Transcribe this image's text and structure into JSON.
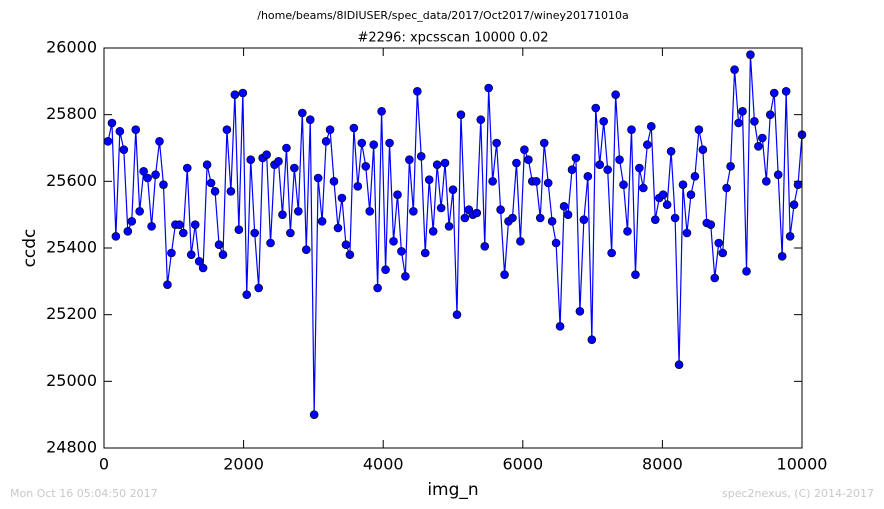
{
  "chart_data": {
    "type": "line",
    "title": "/home/beams/8IDIUSER/spec_data/2017/Oct2017/winey20171010a",
    "subtitle": "#2296: xpcsscan 10000 0.02",
    "xlabel": "img_n",
    "ylabel": "ccdc",
    "footer_left": "Mon Oct 16 05:04:50 2017",
    "footer_right": "spec2nexus, (C) 2014-2017",
    "xlim": [
      0,
      10000
    ],
    "xticks": [
      0,
      2000,
      4000,
      6000,
      8000,
      10000
    ],
    "ylim": [
      24800,
      26000
    ],
    "yticks": [
      24800,
      25000,
      25200,
      25400,
      25600,
      25800,
      26000
    ],
    "grid": false,
    "x": [
      57,
      114,
      170,
      227,
      284,
      341,
      398,
      455,
      511,
      568,
      625,
      682,
      739,
      795,
      852,
      909,
      966,
      1023,
      1080,
      1136,
      1193,
      1250,
      1307,
      1364,
      1420,
      1477,
      1534,
      1591,
      1648,
      1705,
      1761,
      1818,
      1875,
      1932,
      1989,
      2045,
      2102,
      2159,
      2216,
      2273,
      2330,
      2386,
      2443,
      2500,
      2557,
      2614,
      2670,
      2727,
      2784,
      2841,
      2898,
      2955,
      3011,
      3068,
      3125,
      3182,
      3239,
      3295,
      3352,
      3409,
      3466,
      3523,
      3580,
      3636,
      3693,
      3750,
      3807,
      3864,
      3920,
      3977,
      4034,
      4091,
      4148,
      4205,
      4261,
      4318,
      4375,
      4432,
      4489,
      4545,
      4602,
      4659,
      4716,
      4773,
      4830,
      4886,
      4943,
      5000,
      5057,
      5114,
      5170,
      5227,
      5284,
      5341,
      5398,
      5455,
      5511,
      5568,
      5625,
      5682,
      5739,
      5795,
      5852,
      5909,
      5966,
      6023,
      6080,
      6136,
      6193,
      6250,
      6307,
      6364,
      6420,
      6477,
      6534,
      6591,
      6648,
      6705,
      6761,
      6818,
      6875,
      6932,
      6989,
      7045,
      7102,
      7159,
      7216,
      7273,
      7330,
      7386,
      7443,
      7500,
      7557,
      7614,
      7670,
      7727,
      7784,
      7841,
      7898,
      7955,
      8011,
      8068,
      8125,
      8182,
      8239,
      8295,
      8352,
      8409,
      8466,
      8523,
      8580,
      8636,
      8693,
      8750,
      8807,
      8864,
      8920,
      8977,
      9034,
      9091,
      9148,
      9205,
      9261,
      9318,
      9375,
      9432,
      9489,
      9545,
      9602,
      9659,
      9716,
      9773,
      9830,
      9886,
      9943,
      10000
    ],
    "series": [
      {
        "name": "ccdc",
        "color": "#0000ff",
        "values": [
          25720,
          25775,
          25435,
          25750,
          25695,
          25450,
          25480,
          25755,
          25510,
          25630,
          25610,
          25465,
          25620,
          25720,
          25590,
          25290,
          25385,
          25470,
          25470,
          25445,
          25640,
          25380,
          25470,
          25360,
          25340,
          25650,
          25595,
          25570,
          25410,
          25380,
          25755,
          25570,
          25860,
          25455,
          25865,
          25260,
          25665,
          25445,
          25280,
          25670,
          25680,
          25415,
          25650,
          25660,
          25500,
          25700,
          25445,
          25640,
          25510,
          25805,
          25395,
          25785,
          24900,
          25610,
          25480,
          25720,
          25755,
          25600,
          25460,
          25550,
          25410,
          25380,
          25760,
          25585,
          25715,
          25645,
          25510,
          25710,
          25280,
          25810,
          25335,
          25715,
          25420,
          25560,
          25390,
          25315,
          25665,
          25510,
          25870,
          25675,
          25385,
          25605,
          25450,
          25650,
          25520,
          25655,
          25465,
          25575,
          25200,
          25800,
          25490,
          25515,
          25500,
          25505,
          25785,
          25405,
          25880,
          25600,
          25715,
          25515,
          25320,
          25480,
          25490,
          25655,
          25420,
          25695,
          25665,
          25600,
          25600,
          25490,
          25715,
          25595,
          25480,
          25415,
          25165,
          25525,
          25500,
          25635,
          25670,
          25210,
          25485,
          25615,
          25125,
          25820,
          25650,
          25780,
          25635,
          25385,
          25860,
          25665,
          25590,
          25450,
          25755,
          25320,
          25640,
          25580,
          25710,
          25765,
          25485,
          25550,
          25560,
          25530,
          25690,
          25490,
          25050,
          25590,
          25445,
          25560,
          25615,
          25755,
          25695,
          25475,
          25470,
          25310,
          25415,
          25385,
          25580,
          25645,
          25935,
          25775,
          25810,
          25330,
          25980,
          25780,
          25705,
          25730,
          25600,
          25800,
          25865,
          25620,
          25375,
          25870,
          25435,
          25530,
          25590,
          25740
        ]
      }
    ]
  }
}
